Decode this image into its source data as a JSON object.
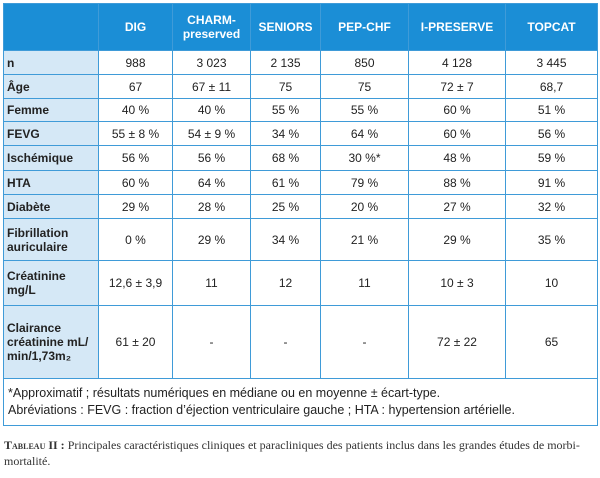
{
  "table": {
    "columns": [
      "DIG",
      "CHARM-preserved",
      "SENIORS",
      "PEP-CHF",
      "I-PRESERVE",
      "TOPCAT"
    ],
    "rows": [
      {
        "label": "n",
        "values": [
          "988",
          "3 023",
          "2 135",
          "850",
          "4 128",
          "3 445"
        ]
      },
      {
        "label": "Âge",
        "values": [
          "67",
          "67 ± 11",
          "75",
          "75",
          "72 ± 7",
          "68,7"
        ]
      },
      {
        "label": "Femme",
        "values": [
          "40 %",
          "40 %",
          "55 %",
          "55 %",
          "60 %",
          "51 %"
        ]
      },
      {
        "label": "FEVG",
        "values": [
          "55 ± 8 %",
          "54 ± 9 %",
          "34 %",
          "64 %",
          "60 %",
          "56 %"
        ]
      },
      {
        "label": "Ischémique",
        "values": [
          "56 %",
          "56 %",
          "68 %",
          "30 %*",
          "48 %",
          "59 %"
        ]
      },
      {
        "label": "HTA",
        "values": [
          "60 %",
          "64 %",
          "61 %",
          "79 %",
          "88 %",
          "91 %"
        ]
      },
      {
        "label": "Diabète",
        "values": [
          "29 %",
          "28 %",
          "25 %",
          "20 %",
          "27 %",
          "32 %"
        ]
      },
      {
        "label": "Fibrillation auriculaire",
        "values": [
          "0 %",
          "29 %",
          "34 %",
          "21 %",
          "29 %",
          "35 %"
        ]
      },
      {
        "label": "Créatinine mg/L",
        "values": [
          "12,6 ± 3,9",
          "11",
          "12",
          "11",
          "10 ± 3",
          "10"
        ]
      },
      {
        "label": "Clairance créatinine mL/ min/1,73m₂",
        "values": [
          "61 ± 20",
          "-",
          "-",
          "-",
          "72 ± 22",
          "65"
        ]
      }
    ],
    "footnotes": [
      "*Approximatif ; résultats numériques en médiane ou en moyenne ± écart-type.",
      "Abréviations : FEVG : fraction d’éjection ventriculaire gauche ; HTA : hypertension artérielle."
    ]
  },
  "caption": {
    "label": "Tableau II :",
    "text": "Principales caractéristiques cliniques et paracliniques des patients inclus dans les grandes études de morbi-mortalité."
  }
}
